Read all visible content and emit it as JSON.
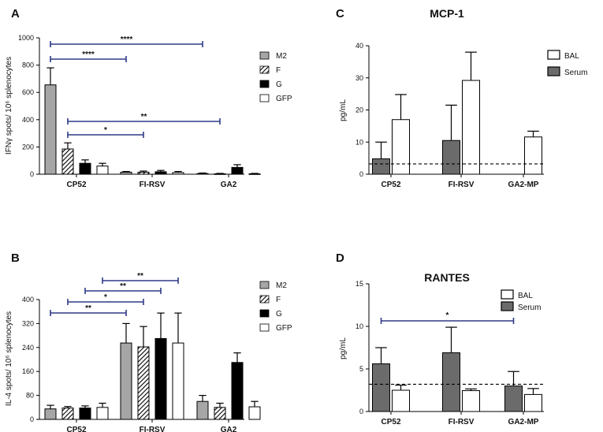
{
  "chart_data": [
    {
      "id": "A",
      "panel_label": "A",
      "type": "bar",
      "title": "",
      "ylabel": "IFNγ spots/ 10⁶ splenocytes",
      "ylim": [
        0,
        1000
      ],
      "yticks": [
        0,
        200,
        400,
        600,
        800,
        1000
      ],
      "categories": [
        "CP52",
        "FI-RSV",
        "GA2"
      ],
      "series": [
        {
          "name": "M2",
          "fill": "gray",
          "values": [
            655,
            15,
            5
          ],
          "errors": [
            125,
            5,
            4
          ]
        },
        {
          "name": "F",
          "fill": "hatch",
          "values": [
            185,
            15,
            3
          ],
          "errors": [
            45,
            8,
            3
          ]
        },
        {
          "name": "G",
          "fill": "black",
          "values": [
            80,
            18,
            50
          ],
          "errors": [
            25,
            10,
            20
          ]
        },
        {
          "name": "GFP",
          "fill": "white",
          "values": [
            60,
            12,
            3
          ],
          "errors": [
            20,
            8,
            3
          ]
        }
      ],
      "legend": [
        "M2",
        "F",
        "G",
        "GFP"
      ],
      "significance": [
        {
          "label": "****",
          "from": [
            0,
            0
          ],
          "to": [
            2,
            0
          ]
        },
        {
          "label": "****",
          "from": [
            0,
            0
          ],
          "to": [
            1,
            0
          ]
        },
        {
          "label": "**",
          "from": [
            0,
            1
          ],
          "to": [
            2,
            1
          ]
        },
        {
          "label": "*",
          "from": [
            0,
            1
          ],
          "to": [
            1,
            1
          ]
        }
      ]
    },
    {
      "id": "B",
      "panel_label": "B",
      "type": "bar",
      "title": "",
      "ylabel": "IL-4 spots/ 10⁶ splenocytes",
      "ylim": [
        0,
        400
      ],
      "yticks": [
        0,
        80,
        160,
        240,
        320,
        400
      ],
      "categories": [
        "CP52",
        "FI-RSV",
        "GA2"
      ],
      "series": [
        {
          "name": "M2",
          "fill": "gray",
          "values": [
            35,
            255,
            60
          ],
          "errors": [
            12,
            65,
            20
          ]
        },
        {
          "name": "F",
          "fill": "hatch",
          "values": [
            38,
            242,
            40
          ],
          "errors": [
            5,
            68,
            14
          ]
        },
        {
          "name": "G",
          "fill": "black",
          "values": [
            38,
            270,
            190
          ],
          "errors": [
            7,
            85,
            32
          ]
        },
        {
          "name": "GFP",
          "fill": "white",
          "values": [
            40,
            255,
            42
          ],
          "errors": [
            14,
            100,
            18
          ]
        }
      ],
      "legend": [
        "M2",
        "F",
        "G",
        "GFP"
      ],
      "significance": [
        {
          "label": "**",
          "from": [
            0,
            0
          ],
          "to": [
            1,
            0
          ]
        },
        {
          "label": "*",
          "from": [
            0,
            1
          ],
          "to": [
            1,
            1
          ]
        },
        {
          "label": "**",
          "from": [
            0,
            2
          ],
          "to": [
            1,
            2
          ]
        },
        {
          "label": "**",
          "from": [
            0,
            3
          ],
          "to": [
            1,
            3
          ]
        }
      ]
    },
    {
      "id": "C",
      "panel_label": "C",
      "type": "bar",
      "title": "MCP-1",
      "ylabel": "pg/mL",
      "ylim": [
        0,
        40
      ],
      "yticks": [
        0,
        10,
        20,
        30,
        40
      ],
      "categories": [
        "CP52",
        "FI-RSV",
        "GA2-MP"
      ],
      "series": [
        {
          "name": "Serum",
          "fill": "darkgray",
          "values": [
            4.8,
            10.5,
            null
          ],
          "errors": [
            5.2,
            11,
            null
          ]
        },
        {
          "name": "BAL",
          "fill": "white",
          "values": [
            17,
            29.2,
            11.6
          ],
          "errors": [
            7.8,
            8.8,
            1.8
          ]
        }
      ],
      "reference_line": 3.2,
      "legend": [
        "BAL",
        "Serum"
      ],
      "significance": []
    },
    {
      "id": "D",
      "panel_label": "D",
      "type": "bar",
      "title": "RANTES",
      "ylabel": "pg/mL",
      "ylim": [
        0,
        15
      ],
      "yticks": [
        0,
        5,
        10,
        15
      ],
      "categories": [
        "CP52",
        "FI-RSV",
        "GA2-MP"
      ],
      "series": [
        {
          "name": "Serum",
          "fill": "darkgray",
          "values": [
            5.6,
            6.9,
            3.0
          ],
          "errors": [
            1.9,
            3.0,
            1.7
          ]
        },
        {
          "name": "BAL",
          "fill": "white",
          "values": [
            2.5,
            2.45,
            2.0
          ],
          "errors": [
            0.6,
            0.2,
            0.7
          ]
        }
      ],
      "reference_line": 3.2,
      "legend": [
        "BAL",
        "Serum"
      ],
      "significance": [
        {
          "label": "*",
          "from": [
            0,
            0
          ],
          "to": [
            2,
            0
          ]
        }
      ]
    }
  ]
}
